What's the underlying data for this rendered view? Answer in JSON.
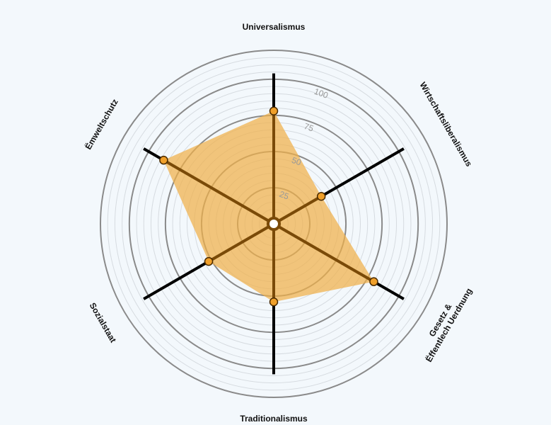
{
  "chart_data": {
    "type": "radar",
    "title": "",
    "axes": [
      {
        "lines": [
          "Universalismus"
        ]
      },
      {
        "lines": [
          "Wirtschaftsliberalismus"
        ]
      },
      {
        "lines": [
          "Gesetz &",
          "Ëffentlech Uerdnung"
        ]
      },
      {
        "lines": [
          "Traditionalismus"
        ]
      },
      {
        "lines": [
          "Sozialstaat"
        ]
      },
      {
        "lines": [
          "Ëmweltschutz"
        ]
      }
    ],
    "series": [
      {
        "values": [
          78,
          38,
          80,
          54,
          52,
          88
        ]
      }
    ],
    "r_range": [
      0,
      120
    ],
    "ticks": [
      25,
      50,
      75,
      100
    ],
    "minor_step": 5,
    "colors": {
      "background": "#f3f8fc",
      "fill": "#f0b04a",
      "spoke_inner": "#7a4a08",
      "spoke_outer": "#000000",
      "major_ring": "#8a8a8a",
      "minor_ring": "#d6dbe0",
      "marker": "#f0a02a",
      "tick_text": "#9a9a9a"
    }
  }
}
